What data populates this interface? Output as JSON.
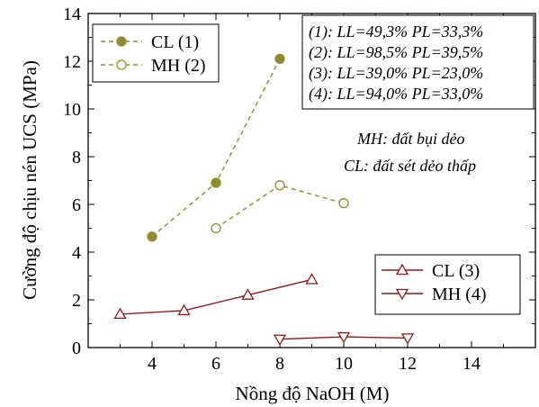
{
  "chart_data": {
    "type": "line",
    "xlabel": "Nồng độ NaOH (M)",
    "ylabel": "Cường độ chịu nén UCS (MPa)",
    "xlim": [
      2,
      16
    ],
    "ylim": [
      0,
      14
    ],
    "xticks": [
      4,
      6,
      8,
      10,
      12,
      14
    ],
    "yticks": [
      0,
      2,
      4,
      6,
      8,
      10,
      12,
      14
    ],
    "grid": false,
    "series": [
      {
        "name": "CL (1)",
        "x": [
          4,
          6,
          8
        ],
        "y": [
          4.65,
          6.9,
          12.1
        ],
        "color": "#8f8c2b",
        "line": "dashed",
        "marker": "circle-filled"
      },
      {
        "name": "MH (2)",
        "x": [
          6,
          8,
          10
        ],
        "y": [
          5.0,
          6.8,
          6.05
        ],
        "color": "#8f8c2b",
        "line": "dashed",
        "marker": "circle-open"
      },
      {
        "name": "CL (3)",
        "x": [
          3,
          5,
          7,
          9
        ],
        "y": [
          1.4,
          1.55,
          2.2,
          2.85
        ],
        "color": "#8b1a1a",
        "line": "solid",
        "marker": "triangle-up-open"
      },
      {
        "name": "MH (4)",
        "x": [
          8,
          10,
          12
        ],
        "y": [
          0.35,
          0.45,
          0.4
        ],
        "color": "#8b1a1a",
        "line": "solid",
        "marker": "triangle-down-open"
      }
    ],
    "legends": [
      {
        "position": "top-left",
        "entries": [
          "CL (1)",
          "MH (2)"
        ]
      },
      {
        "position": "bottom-right",
        "entries": [
          "CL (3)",
          "MH (4)"
        ]
      }
    ],
    "annotations": {
      "limits": [
        "(1): LL=49,3% PL=33,3%",
        "(2): LL=98,5% PL=39,5%",
        "(3): LL=39,0% PL=23,0%",
        "(4): LL=94,0% PL=33,0%"
      ],
      "notes": [
        "MH: đất bụi dẻo",
        "CL: đất sét dẻo thấp"
      ]
    }
  }
}
